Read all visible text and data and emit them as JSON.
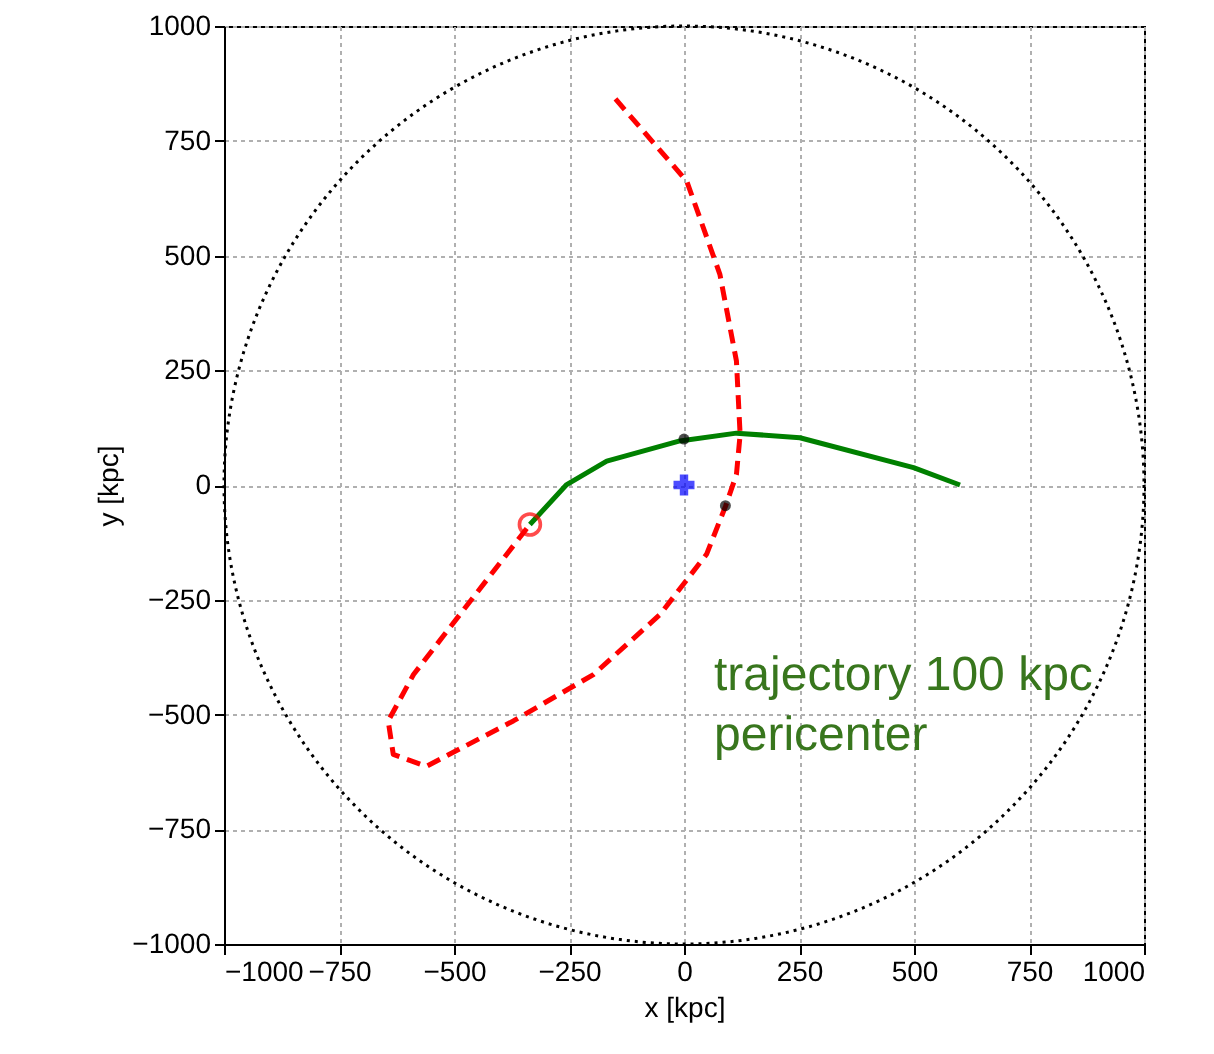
{
  "chart_data": {
    "type": "line",
    "xlabel": "x [kpc]",
    "ylabel": "y [kpc]",
    "xlim": [
      -1000,
      1000
    ],
    "ylim": [
      -1000,
      1000
    ],
    "xticks": [
      {
        "value": -1000,
        "label": "−1000"
      },
      -750,
      -500,
      -250,
      0,
      250,
      500,
      750,
      {
        "value": 1000,
        "label": "1000"
      }
    ],
    "yticks": [
      {
        "value": -1000,
        "label": "−1000"
      },
      -750,
      -500,
      -250,
      0,
      250,
      500,
      750,
      {
        "value": 1000,
        "label": "1000"
      }
    ],
    "grid": true,
    "series": [
      {
        "color": "#ff0000",
        "line_style": "dashed",
        "marker": "none",
        "x": [
          -149,
          6,
          78,
          114,
          122,
          114,
          90,
          49,
          -52,
          -197,
          -371,
          -560,
          -632,
          -643,
          -588,
          -487,
          -335
        ],
        "values": [
          841,
          662,
          459,
          270,
          110,
          23,
          -47,
          -151,
          -282,
          -413,
          -514,
          -613,
          -587,
          -514,
          -413,
          -282,
          -86
        ]
      },
      {
        "color": "#008000",
        "line_style": "solid",
        "marker": "none",
        "x": [
          -335,
          -255,
          -168,
          -9,
          114,
          252,
          499,
          600
        ],
        "values": [
          -86,
          1,
          52,
          96,
          113,
          103,
          38,
          0
        ]
      },
      {
        "type": "scatter",
        "color": "#000000",
        "marker": "circle",
        "x": [
          0,
          90
        ],
        "values": [
          100,
          -45
        ]
      },
      {
        "type": "scatter",
        "color": "#ff0000",
        "marker": "circle",
        "x": [
          -335
        ],
        "values": [
          -86
        ]
      },
      {
        "type": "scatter",
        "color": "#0000ff",
        "marker": "cross",
        "x": [
          0
        ],
        "values": [
          0
        ]
      }
    ],
    "annotations": [
      "trajectory 100 kpc\npericenter"
    ]
  }
}
